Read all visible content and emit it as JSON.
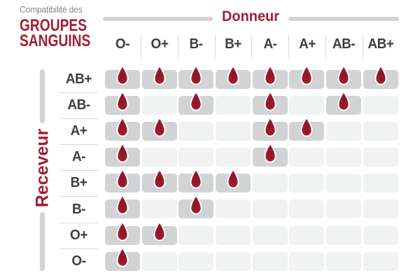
{
  "title": {
    "kicker": "Compatibilité des",
    "line1": "GROUPES",
    "line2": "SANGUINS"
  },
  "donor_axis_label": "Donneur",
  "receiver_axis_label": "Receveur",
  "chart_data": {
    "type": "heatmap",
    "title": "Compatibilité des groupes sanguins",
    "x_axis_title": "Donneur",
    "y_axis_title": "Receveur",
    "columns": [
      "O-",
      "O+",
      "B-",
      "B+",
      "A-",
      "A+",
      "AB-",
      "AB+"
    ],
    "rows": [
      "AB+",
      "AB-",
      "A+",
      "A-",
      "B+",
      "B-",
      "O+",
      "O-"
    ],
    "values": [
      [
        1,
        1,
        1,
        1,
        1,
        1,
        1,
        1
      ],
      [
        1,
        0,
        1,
        0,
        1,
        0,
        1,
        0
      ],
      [
        1,
        1,
        0,
        0,
        1,
        1,
        0,
        0
      ],
      [
        1,
        0,
        0,
        0,
        1,
        0,
        0,
        0
      ],
      [
        1,
        1,
        1,
        1,
        0,
        0,
        0,
        0
      ],
      [
        1,
        0,
        1,
        0,
        0,
        0,
        0,
        0
      ],
      [
        1,
        1,
        0,
        0,
        0,
        0,
        0,
        0
      ],
      [
        1,
        0,
        0,
        0,
        0,
        0,
        0,
        0
      ]
    ],
    "true_marker": "blood-drop-icon",
    "legend_position": "none",
    "grid": false
  },
  "colors": {
    "accent_red": "#A41E31",
    "drop_red_dark": "#8C1426",
    "drop_red_light": "#AD2138",
    "muted_gray": "#87898C",
    "label_dark": "#3E3F42",
    "bar_gray": "#D1D3D4",
    "cell_filled": "#D2D3D5",
    "cell_empty": "#F1F2F2",
    "separator": "#D8DADB"
  }
}
